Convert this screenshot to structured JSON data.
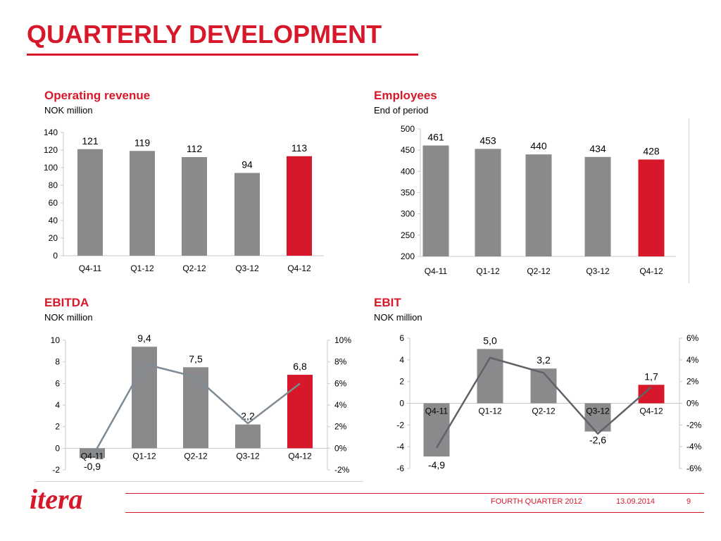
{
  "header": {
    "title": "QUARTERLY DEVELOPMENT"
  },
  "colors": {
    "accent": "#d7182a",
    "bar": "#8a8a8c",
    "line": "#7e8a94",
    "line_dark": "#5f6368"
  },
  "chart_data": [
    {
      "id": "revenue",
      "type": "bar",
      "title": "Operating revenue",
      "subtitle": "NOK million",
      "categories": [
        "Q4-11",
        "Q1-12",
        "Q2-12",
        "Q3-12",
        "Q4-12"
      ],
      "values": [
        121,
        119,
        112,
        94,
        113
      ],
      "value_labels": [
        "121",
        "119",
        "112",
        "94",
        "113"
      ],
      "highlight_index": 4,
      "ylim": [
        0,
        140
      ],
      "yticks": [
        0,
        20,
        40,
        60,
        80,
        100,
        120,
        140
      ],
      "ytick_labels": [
        "0",
        "20",
        "40",
        "60",
        "80",
        "100",
        "120",
        "140"
      ]
    },
    {
      "id": "employees",
      "type": "bar",
      "title": "Employees",
      "subtitle": "End of period",
      "categories": [
        "Q4-11",
        "Q1-12",
        "Q2-12",
        "Q3-12",
        "Q4-12"
      ],
      "values": [
        461,
        453,
        440,
        434,
        428
      ],
      "value_labels": [
        "461",
        "453",
        "440",
        "434",
        "428"
      ],
      "highlight_index": 4,
      "ylim": [
        200,
        500
      ],
      "yticks": [
        200,
        250,
        300,
        350,
        400,
        450,
        500
      ],
      "ytick_labels": [
        "200",
        "250",
        "300",
        "350",
        "400",
        "450",
        "500"
      ]
    },
    {
      "id": "ebitda",
      "type": "bar+line",
      "title": "EBITDA",
      "subtitle": "NOK million",
      "categories": [
        "Q4-11",
        "Q1-12",
        "Q2-12",
        "Q3-12",
        "Q4-12"
      ],
      "values": [
        -0.9,
        9.4,
        7.5,
        2.2,
        6.8
      ],
      "value_labels": [
        "-0,9",
        "9,4",
        "7,5",
        "2,2",
        "6,8"
      ],
      "line_values_pct": [
        -0.8,
        7.8,
        6.6,
        2.3,
        6.0
      ],
      "highlight_index": 4,
      "ylim": [
        -2,
        10
      ],
      "yticks": [
        -2,
        0,
        2,
        4,
        6,
        8,
        10
      ],
      "ytick_labels": [
        "-2",
        "0",
        "2",
        "4",
        "6",
        "8",
        "10"
      ],
      "y2lim": [
        -2,
        10
      ],
      "y2ticks": [
        -2,
        0,
        2,
        4,
        6,
        8,
        10
      ],
      "y2tick_labels": [
        "-2%",
        "0%",
        "2%",
        "4%",
        "6%",
        "8%",
        "10%"
      ]
    },
    {
      "id": "ebit",
      "type": "bar+line",
      "title": "EBIT",
      "subtitle": "NOK million",
      "categories": [
        "Q4-11",
        "Q1-12",
        "Q2-12",
        "Q3-12",
        "Q4-12"
      ],
      "values": [
        -4.9,
        5.0,
        3.2,
        -2.6,
        1.7
      ],
      "value_labels": [
        "-4,9",
        "5,0",
        "3,2",
        "-2,6",
        "1,7"
      ],
      "line_values_pct": [
        -4.1,
        4.2,
        2.8,
        -2.8,
        1.5
      ],
      "highlight_index": 4,
      "ylim": [
        -6,
        6
      ],
      "yticks": [
        -6,
        -4,
        -2,
        0,
        2,
        4,
        6
      ],
      "ytick_labels": [
        "-6",
        "-4",
        "-2",
        "0",
        "2",
        "4",
        "6"
      ],
      "y2lim": [
        -6,
        6
      ],
      "y2ticks": [
        -6,
        -4,
        -2,
        0,
        2,
        4,
        6
      ],
      "y2tick_labels": [
        "-6%",
        "-4%",
        "-2%",
        "0%",
        "2%",
        "4%",
        "6%"
      ]
    }
  ],
  "footer": {
    "logo_text": "itera",
    "report": "FOURTH QUARTER 2012",
    "date": "13.09.2014",
    "page": "9"
  }
}
